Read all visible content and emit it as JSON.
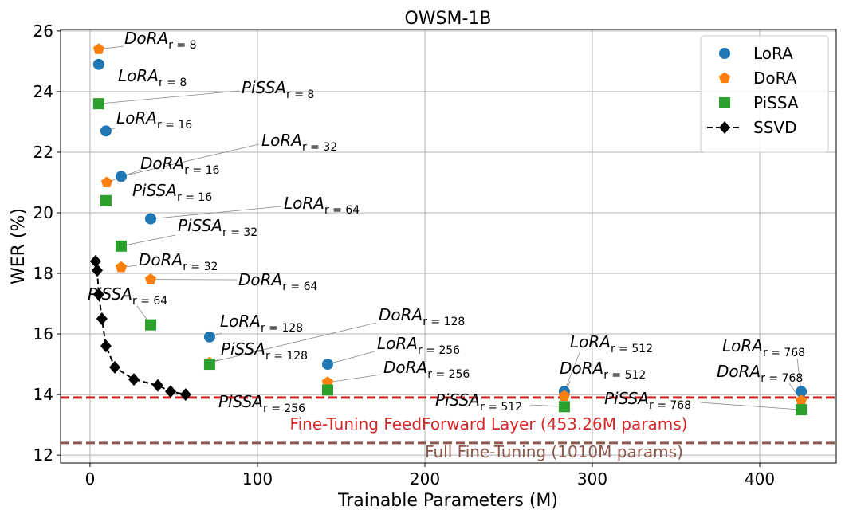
{
  "chart_data": {
    "type": "scatter",
    "title": "OWSM-1B",
    "x_label": "Trainable Parameters (M)",
    "y_label": "WER (%)",
    "xlim": [
      -17.6,
      445.7
    ],
    "ylim": [
      11.74,
      26.05
    ],
    "xticks": [
      0,
      100,
      200,
      300,
      400
    ],
    "yticks": [
      12,
      14,
      16,
      18,
      20,
      22,
      24,
      26
    ],
    "grid": true,
    "legend": "upper right",
    "series": [
      {
        "name": "LoRA",
        "color": "#1f77b4",
        "marker": "circle",
        "x": [
          5.2,
          9.5,
          18.6,
          36.2,
          71.4,
          141.9,
          283.3,
          424.8
        ],
        "values": [
          24.9,
          22.7,
          21.2,
          19.8,
          15.9,
          15.0,
          14.1,
          14.1
        ],
        "labels": [
          "r = 8",
          "r = 16",
          "r = 32",
          "r = 64",
          "r = 128",
          "r = 256",
          "r = 512",
          "r = 768"
        ]
      },
      {
        "name": "DoRA",
        "color": "#ff7f0e",
        "marker": "pentagon",
        "x": [
          5.2,
          10.0,
          18.6,
          36.2,
          71.4,
          141.9,
          283.3,
          424.8
        ],
        "values": [
          25.4,
          21.0,
          18.2,
          17.8,
          15.05,
          14.4,
          13.95,
          13.8
        ],
        "labels": [
          "r = 8",
          "r = 16",
          "r = 32",
          "r = 64",
          "r = 128",
          "r = 256",
          "r = 512",
          "r = 768"
        ]
      },
      {
        "name": "PiSSA",
        "color": "#2ca02c",
        "marker": "square",
        "x": [
          5.2,
          9.5,
          18.6,
          36.2,
          71.4,
          141.9,
          283.3,
          424.8
        ],
        "values": [
          23.6,
          20.4,
          18.9,
          16.3,
          15.0,
          14.15,
          13.6,
          13.5
        ],
        "labels": [
          "r = 8",
          "r = 16",
          "r = 32",
          "r = 64",
          "r = 128",
          "r = 256",
          "r = 512",
          "r = 768"
        ]
      },
      {
        "name": "SSVD",
        "color": "#000000",
        "marker": "diamond",
        "line": "dashed",
        "x": [
          3.3,
          4.3,
          5.2,
          7.1,
          9.5,
          14.8,
          26.2,
          40.5,
          48.1,
          57.1
        ],
        "values": [
          18.4,
          18.1,
          17.3,
          16.5,
          15.6,
          14.9,
          14.5,
          14.3,
          14.1,
          14.0
        ]
      }
    ],
    "hlines": [
      {
        "value": 13.9,
        "label": "Fine-Tuning FeedForward Layer (453.26M params)",
        "color": "#d62728"
      },
      {
        "value": 12.4,
        "label": "Full Fine-Tuning (1010M params)",
        "color": "#8c564b"
      }
    ]
  }
}
